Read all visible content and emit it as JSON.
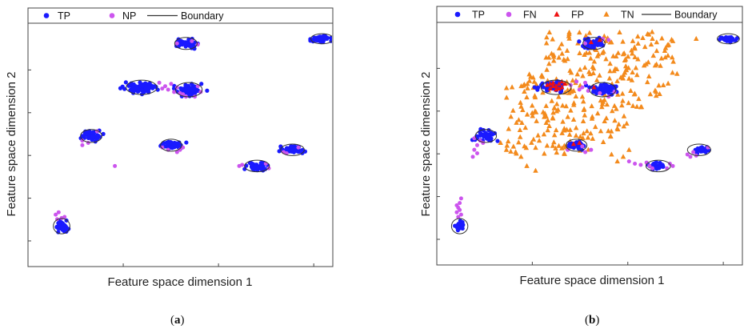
{
  "chart_data": [
    {
      "type": "scatter",
      "panel_label": "(a)",
      "xlabel": "Feature space dimension 1",
      "ylabel": "Feature space dimension 2",
      "xlim": [
        0,
        1
      ],
      "ylim": [
        0,
        1
      ],
      "legend": {
        "placement": "top",
        "entries": [
          {
            "label": "TP",
            "marker": "circle",
            "color": "#1a1aff"
          },
          {
            "label": "NP",
            "marker": "circle",
            "color": "#cc55ee"
          },
          {
            "label": "Boundary",
            "marker": "line",
            "color": "#333333"
          }
        ]
      },
      "boundaries": [
        {
          "x": 0.1,
          "y": 0.14,
          "rx": 0.028,
          "ry": 0.033
        },
        {
          "x": 0.2,
          "y": 0.53,
          "rx": 0.036,
          "ry": 0.028
        },
        {
          "x": 0.37,
          "y": 0.74,
          "rx": 0.052,
          "ry": 0.031
        },
        {
          "x": 0.53,
          "y": 0.73,
          "rx": 0.045,
          "ry": 0.031
        },
        {
          "x": 0.52,
          "y": 0.93,
          "rx": 0.038,
          "ry": 0.026
        },
        {
          "x": 0.47,
          "y": 0.49,
          "rx": 0.036,
          "ry": 0.026
        },
        {
          "x": 0.76,
          "y": 0.4,
          "rx": 0.042,
          "ry": 0.025
        },
        {
          "x": 0.88,
          "y": 0.47,
          "rx": 0.04,
          "ry": 0.025
        },
        {
          "x": 0.98,
          "y": 0.95,
          "rx": 0.038,
          "ry": 0.022
        }
      ],
      "series": [
        {
          "name": "TP",
          "color": "#1a1aff",
          "clusters": [
            {
              "x": 0.1,
              "y": 0.14,
              "sx": 0.01,
              "sy": 0.012,
              "n": 45
            },
            {
              "x": 0.2,
              "y": 0.53,
              "sx": 0.016,
              "sy": 0.01,
              "n": 50
            },
            {
              "x": 0.37,
              "y": 0.74,
              "sx": 0.026,
              "sy": 0.011,
              "n": 80
            },
            {
              "x": 0.53,
              "y": 0.73,
              "sx": 0.022,
              "sy": 0.011,
              "n": 70
            },
            {
              "x": 0.52,
              "y": 0.93,
              "sx": 0.018,
              "sy": 0.009,
              "n": 50
            },
            {
              "x": 0.47,
              "y": 0.49,
              "sx": 0.016,
              "sy": 0.009,
              "n": 50
            },
            {
              "x": 0.76,
              "y": 0.4,
              "sx": 0.02,
              "sy": 0.009,
              "n": 55
            },
            {
              "x": 0.88,
              "y": 0.47,
              "sx": 0.018,
              "sy": 0.008,
              "n": 45
            },
            {
              "x": 0.98,
              "y": 0.95,
              "sx": 0.018,
              "sy": 0.007,
              "n": 45
            }
          ]
        },
        {
          "name": "NP",
          "color": "#cc55ee",
          "points": [
            [
              0.08,
              0.19
            ],
            [
              0.09,
              0.2
            ],
            [
              0.085,
              0.17
            ],
            [
              0.11,
              0.18
            ],
            [
              0.1,
              0.175
            ],
            [
              0.17,
              0.49
            ],
            [
              0.17,
              0.51
            ],
            [
              0.22,
              0.55
            ],
            [
              0.19,
              0.5
            ],
            [
              0.28,
              0.4
            ],
            [
              0.43,
              0.76
            ],
            [
              0.45,
              0.745
            ],
            [
              0.46,
              0.73
            ],
            [
              0.47,
              0.755
            ],
            [
              0.48,
              0.72
            ],
            [
              0.49,
              0.74
            ],
            [
              0.5,
              0.715
            ],
            [
              0.44,
              0.735
            ],
            [
              0.51,
              0.71
            ],
            [
              0.55,
              0.7
            ],
            [
              0.57,
              0.72
            ],
            [
              0.56,
              0.745
            ],
            [
              0.52,
              0.7
            ],
            [
              0.5,
              0.47
            ],
            [
              0.51,
              0.48
            ],
            [
              0.49,
              0.46
            ],
            [
              0.44,
              0.48
            ],
            [
              0.46,
              0.47
            ],
            [
              0.7,
              0.4
            ],
            [
              0.71,
              0.405
            ],
            [
              0.8,
              0.39
            ],
            [
              0.79,
              0.41
            ],
            [
              0.85,
              0.46
            ],
            [
              0.9,
              0.48
            ],
            [
              0.86,
              0.455
            ],
            [
              0.49,
              0.93
            ],
            [
              0.56,
              0.925
            ],
            [
              0.54,
              0.94
            ]
          ]
        }
      ]
    },
    {
      "type": "scatter",
      "panel_label": "(b)",
      "xlabel": "Feature space dimension 1",
      "ylabel": "Feature space dimension 2",
      "xlim": [
        0,
        1
      ],
      "ylim": [
        0,
        1
      ],
      "legend": {
        "placement": "top",
        "entries": [
          {
            "label": "TP",
            "marker": "circle",
            "color": "#1a1aff"
          },
          {
            "label": "FN",
            "marker": "circle",
            "color": "#cc55ee"
          },
          {
            "label": "FP",
            "marker": "triangle",
            "color": "#ee1111"
          },
          {
            "label": "TN",
            "marker": "triangle",
            "color": "#f38a1c"
          },
          {
            "label": "Boundary",
            "marker": "line",
            "color": "#333333"
          }
        ]
      },
      "boundaries": [
        {
          "x": 0.04,
          "y": 0.14,
          "rx": 0.028,
          "ry": 0.033
        },
        {
          "x": 0.13,
          "y": 0.53,
          "rx": 0.036,
          "ry": 0.028
        },
        {
          "x": 0.37,
          "y": 0.74,
          "rx": 0.052,
          "ry": 0.031
        },
        {
          "x": 0.53,
          "y": 0.73,
          "rx": 0.045,
          "ry": 0.031
        },
        {
          "x": 0.5,
          "y": 0.93,
          "rx": 0.038,
          "ry": 0.026
        },
        {
          "x": 0.44,
          "y": 0.49,
          "rx": 0.036,
          "ry": 0.026
        },
        {
          "x": 0.72,
          "y": 0.4,
          "rx": 0.042,
          "ry": 0.025
        },
        {
          "x": 0.86,
          "y": 0.47,
          "rx": 0.04,
          "ry": 0.025
        },
        {
          "x": 0.96,
          "y": 0.95,
          "rx": 0.038,
          "ry": 0.022
        }
      ],
      "series": [
        {
          "name": "TP",
          "color": "#1a1aff",
          "clusters": [
            {
              "x": 0.04,
              "y": 0.14,
              "sx": 0.008,
              "sy": 0.01,
              "n": 30
            },
            {
              "x": 0.13,
              "y": 0.53,
              "sx": 0.016,
              "sy": 0.01,
              "n": 45
            },
            {
              "x": 0.36,
              "y": 0.745,
              "sx": 0.02,
              "sy": 0.01,
              "n": 50
            },
            {
              "x": 0.53,
              "y": 0.73,
              "sx": 0.022,
              "sy": 0.011,
              "n": 60
            },
            {
              "x": 0.5,
              "y": 0.93,
              "sx": 0.018,
              "sy": 0.009,
              "n": 45
            },
            {
              "x": 0.44,
              "y": 0.49,
              "sx": 0.014,
              "sy": 0.008,
              "n": 35
            },
            {
              "x": 0.72,
              "y": 0.4,
              "sx": 0.016,
              "sy": 0.008,
              "n": 30
            },
            {
              "x": 0.87,
              "y": 0.47,
              "sx": 0.014,
              "sy": 0.007,
              "n": 25
            },
            {
              "x": 0.96,
              "y": 0.95,
              "sx": 0.016,
              "sy": 0.006,
              "n": 35
            }
          ]
        },
        {
          "name": "FN",
          "color": "#cc55ee",
          "points": [
            [
              0.035,
              0.22
            ],
            [
              0.04,
              0.24
            ],
            [
              0.03,
              0.2
            ],
            [
              0.045,
              0.26
            ],
            [
              0.035,
              0.18
            ],
            [
              0.04,
              0.21
            ],
            [
              0.03,
              0.23
            ],
            [
              0.045,
              0.19
            ],
            [
              0.1,
              0.49
            ],
            [
              0.09,
              0.47
            ],
            [
              0.085,
              0.44
            ],
            [
              0.1,
              0.455
            ],
            [
              0.11,
              0.51
            ],
            [
              0.12,
              0.5
            ],
            [
              0.09,
              0.52
            ],
            [
              0.42,
              0.75
            ],
            [
              0.44,
              0.765
            ],
            [
              0.46,
              0.74
            ],
            [
              0.48,
              0.725
            ],
            [
              0.47,
              0.76
            ],
            [
              0.45,
              0.73
            ],
            [
              0.57,
              0.72
            ],
            [
              0.55,
              0.7
            ],
            [
              0.52,
              0.715
            ],
            [
              0.41,
              0.47
            ],
            [
              0.47,
              0.46
            ],
            [
              0.49,
              0.47
            ],
            [
              0.46,
              0.485
            ],
            [
              0.62,
              0.42
            ],
            [
              0.64,
              0.41
            ],
            [
              0.66,
              0.405
            ],
            [
              0.69,
              0.4
            ],
            [
              0.7,
              0.39
            ],
            [
              0.68,
              0.415
            ],
            [
              0.76,
              0.41
            ],
            [
              0.77,
              0.4
            ],
            [
              0.75,
              0.39
            ],
            [
              0.82,
              0.45
            ],
            [
              0.83,
              0.44
            ],
            [
              0.84,
              0.46
            ],
            [
              0.85,
              0.445
            ],
            [
              0.89,
              0.48
            ],
            [
              0.53,
              0.95
            ],
            [
              0.55,
              0.945
            ],
            [
              0.47,
              0.93
            ]
          ]
        },
        {
          "name": "FP",
          "color": "#ee1111",
          "points": [
            [
              0.34,
              0.75
            ],
            [
              0.35,
              0.735
            ],
            [
              0.36,
              0.76
            ],
            [
              0.37,
              0.745
            ],
            [
              0.38,
              0.755
            ],
            [
              0.39,
              0.74
            ],
            [
              0.35,
              0.755
            ],
            [
              0.37,
              0.73
            ],
            [
              0.36,
              0.745
            ],
            [
              0.38,
              0.735
            ],
            [
              0.4,
              0.755
            ],
            [
              0.39,
              0.765
            ],
            [
              0.5,
              0.74
            ],
            [
              0.52,
              0.945
            ],
            [
              0.49,
              0.935
            ],
            [
              0.45,
              0.5
            ],
            [
              0.43,
              0.495
            ]
          ]
        },
        {
          "name": "TN",
          "color": "#f38a1c",
          "region": {
            "count": 330,
            "seed": 7
          },
          "points_extra": [
            [
              0.7,
              0.95
            ],
            [
              0.77,
              0.94
            ],
            [
              0.85,
              0.95
            ],
            [
              0.25,
              0.44
            ],
            [
              0.27,
              0.4
            ],
            [
              0.3,
              0.38
            ],
            [
              0.18,
              0.5
            ],
            [
              0.2,
              0.47
            ],
            [
              0.58,
              0.42
            ],
            [
              0.56,
              0.45
            ],
            [
              0.6,
              0.44
            ],
            [
              0.62,
              0.47
            ],
            [
              0.65,
              0.96
            ]
          ]
        }
      ]
    }
  ]
}
